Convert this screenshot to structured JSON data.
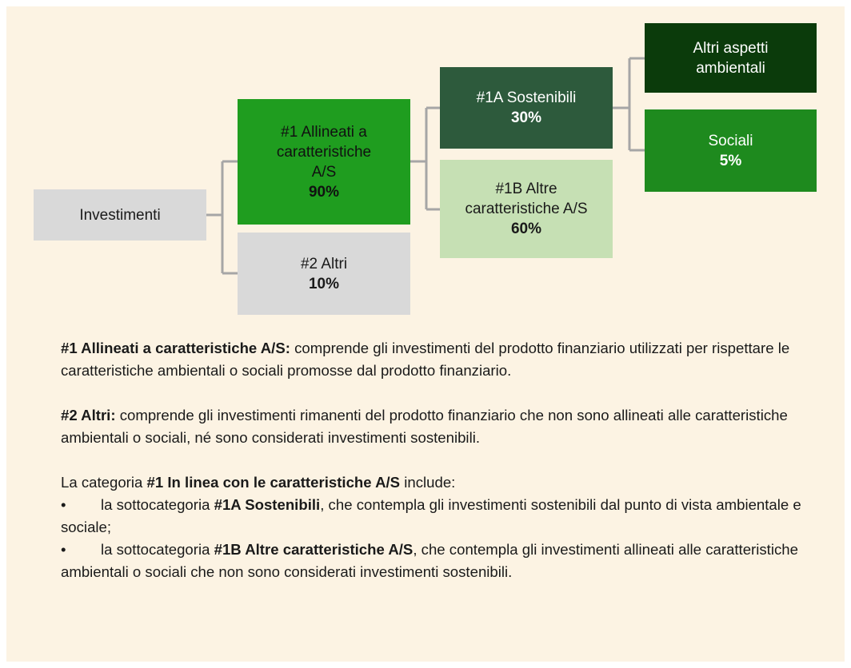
{
  "nodes": [
    {
      "lines": [
        "Investimenti"
      ]
    },
    {
      "lines": [
        "#1 Allineati a",
        "caratteristiche",
        "A/S"
      ],
      "percent": "90%"
    },
    {
      "lines": [
        "#2 Altri"
      ],
      "percent": "10%"
    },
    {
      "lines": [
        "#1A Sostenibili"
      ],
      "percent": "30%"
    },
    {
      "lines": [
        "#1B Altre",
        "caratteristiche A/S"
      ],
      "percent": "60%"
    },
    {
      "lines": [
        "Altri aspetti",
        "ambientali"
      ]
    },
    {
      "lines": [
        "Sociali"
      ],
      "percent": "5%"
    }
  ],
  "paragraphs": [
    [
      {
        "bold": true,
        "text": "#1 Allineati a caratteristiche A/S:"
      },
      {
        "bold": false,
        "text": " comprende gli investimenti del prodotto finanziario utilizzati per rispettare le caratteristiche ambientali o sociali promosse dal prodotto finanziario."
      }
    ],
    [
      {
        "bold": true,
        "text": "#2 Altri:"
      },
      {
        "bold": false,
        "text": " comprende gli investimenti rimanenti del prodotto finanziario che non sono allineati alle caratteristiche ambientali o sociali, né sono considerati investimenti sostenibili."
      }
    ]
  ],
  "list": {
    "intro": [
      {
        "bold": false,
        "text": "La categoria "
      },
      {
        "bold": true,
        "text": "#1 In linea con le caratteristiche A/S"
      },
      {
        "bold": false,
        "text": " include:"
      }
    ],
    "items": [
      {
        "bullet": "•",
        "runs": [
          {
            "bold": false,
            "text": "la sottocategoria "
          },
          {
            "bold": true,
            "text": "#1A Sostenibili"
          },
          {
            "bold": false,
            "text": ", che contempla gli investimenti sostenibili dal punto di vista ambientale e sociale;"
          }
        ]
      },
      {
        "bullet": "•",
        "runs": [
          {
            "bold": false,
            "text": "la sottocategoria "
          },
          {
            "bold": true,
            "text": "#1B Altre caratteristiche A/S"
          },
          {
            "bold": false,
            "text": ", che contempla gli investimenti allineati alle caratteristiche ambientali o sociali che non sono considerati investimenti sostenibili."
          }
        ]
      }
    ]
  }
}
